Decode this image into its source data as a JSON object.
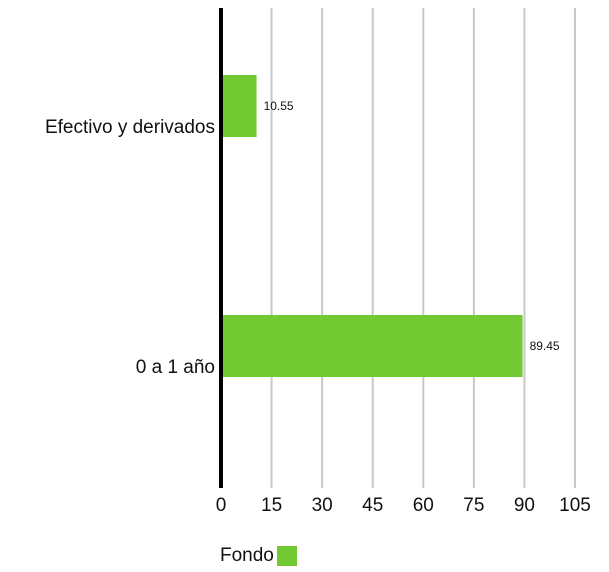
{
  "chart_data": {
    "type": "bar",
    "orientation": "horizontal",
    "categories": [
      "Efectivo y derivados",
      "0 a 1 año"
    ],
    "series": [
      {
        "name": "Fondo",
        "values": [
          10.55,
          89.45
        ],
        "color": "#72c931"
      }
    ],
    "data_labels": [
      "10.55",
      "89.45"
    ],
    "xlim": [
      0,
      105
    ],
    "xticks": [
      0,
      15,
      30,
      45,
      60,
      75,
      90,
      105
    ],
    "xtick_labels": [
      "0",
      "15",
      "30",
      "45",
      "60",
      "75",
      "90",
      "105"
    ],
    "grid": "vertical",
    "legend_position": "bottom-left",
    "title": "",
    "xlabel": "",
    "ylabel": ""
  },
  "legend": {
    "label": "Fondo"
  }
}
